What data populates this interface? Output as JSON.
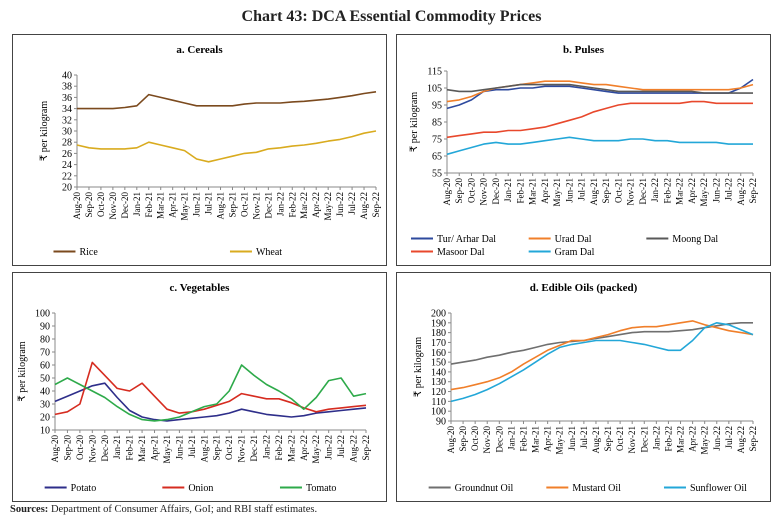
{
  "title": "Chart 43: DCA Essential Commodity Prices",
  "sources_label": "Sources:",
  "sources_text": "Department of Consumer Affairs, GoI; and RBI staff estimates.",
  "months": [
    "Aug-20",
    "Sep-20",
    "Oct-20",
    "Nov-20",
    "Dec-20",
    "Jan-21",
    "Feb-21",
    "Mar-21",
    "Apr-21",
    "May-21",
    "Jun-21",
    "Jul-21",
    "Aug-21",
    "Sep-21",
    "Oct-21",
    "Nov-21",
    "Dec-21",
    "Jan-22",
    "Feb-22",
    "Mar-22",
    "Apr-22",
    "May-22",
    "Jun-22",
    "Jul-22",
    "Aug-22",
    "Sep-22"
  ],
  "chart_data": [
    {
      "id": "cereals",
      "type": "line",
      "title": "a. Cereals",
      "ylabel": "₹ per kilogram",
      "ylim": [
        20,
        40
      ],
      "yticks": [
        20,
        22,
        24,
        26,
        28,
        30,
        32,
        34,
        36,
        38,
        40
      ],
      "x": [
        "Aug-20",
        "Sep-20",
        "Oct-20",
        "Nov-20",
        "Dec-20",
        "Jan-21",
        "Feb-21",
        "Mar-21",
        "Apr-21",
        "May-21",
        "Jun-21",
        "Jul-21",
        "Aug-21",
        "Sep-21",
        "Oct-21",
        "Nov-21",
        "Dec-21",
        "Jan-22",
        "Feb-22",
        "Mar-22",
        "Apr-22",
        "May-22",
        "Jun-22",
        "Jul-22",
        "Aug-22",
        "Sep-22"
      ],
      "legend_position": "bottom",
      "series": [
        {
          "name": "Rice",
          "color": "#7b4a1e",
          "values": [
            34,
            34,
            34,
            34,
            34.2,
            34.5,
            36.5,
            36,
            35.5,
            35,
            34.5,
            34.5,
            34.5,
            34.5,
            34.8,
            35,
            35,
            35,
            35.2,
            35.3,
            35.5,
            35.7,
            36,
            36.3,
            36.7,
            37
          ]
        },
        {
          "name": "Wheat",
          "color": "#d9ab1f",
          "values": [
            27.5,
            27,
            26.8,
            26.8,
            26.8,
            27,
            28,
            27.5,
            27,
            26.5,
            25,
            24.5,
            25,
            25.5,
            26,
            26.2,
            26.8,
            27,
            27.3,
            27.5,
            27.8,
            28.2,
            28.5,
            29,
            29.6,
            30
          ]
        }
      ]
    },
    {
      "id": "pulses",
      "type": "line",
      "title": "b. Pulses",
      "ylabel": "₹ per kilogram",
      "ylim": [
        55,
        115
      ],
      "yticks": [
        55,
        65,
        75,
        85,
        95,
        105,
        115
      ],
      "x": [
        "Aug-20",
        "Sep-20",
        "Oct-20",
        "Nov-20",
        "Dec-20",
        "Jan-21",
        "Feb-21",
        "Mar-21",
        "Apr-21",
        "May-21",
        "Jun-21",
        "Jul-21",
        "Aug-21",
        "Sep-21",
        "Oct-21",
        "Nov-21",
        "Dec-21",
        "Jan-22",
        "Feb-22",
        "Mar-22",
        "Apr-22",
        "May-22",
        "Jun-22",
        "Jul-22",
        "Aug-22",
        "Sep-22"
      ],
      "legend_position": "bottom",
      "series": [
        {
          "name": "Tur/ Arhar Dal",
          "color": "#2e4a9e",
          "values": [
            93,
            95,
            98,
            103,
            104,
            104,
            105,
            105,
            106,
            106,
            106,
            105,
            104,
            103,
            102,
            102,
            102,
            102,
            102,
            102,
            102,
            102,
            102,
            102,
            105,
            110
          ]
        },
        {
          "name": "Urad Dal",
          "color": "#f07f2a",
          "values": [
            97,
            98,
            100,
            103,
            105,
            106,
            107,
            108,
            109,
            109,
            109,
            108,
            107,
            107,
            106,
            105,
            104,
            104,
            104,
            104,
            104,
            104,
            104,
            104,
            105,
            107
          ]
        },
        {
          "name": "Moong Dal",
          "color": "#595959",
          "values": [
            104,
            103,
            103,
            104,
            105,
            106,
            107,
            107,
            107,
            107,
            107,
            106,
            105,
            104,
            103,
            103,
            103,
            103,
            103,
            103,
            103,
            102,
            102,
            102,
            102,
            102
          ]
        },
        {
          "name": "Masoor Dal",
          "color": "#e8482c",
          "values": [
            76,
            77,
            78,
            79,
            79,
            80,
            80,
            81,
            82,
            84,
            86,
            88,
            91,
            93,
            95,
            96,
            96,
            96,
            96,
            96,
            97,
            97,
            96,
            96,
            96,
            96
          ]
        },
        {
          "name": "Gram Dal",
          "color": "#23a7d8",
          "values": [
            66,
            68,
            70,
            72,
            73,
            72,
            72,
            73,
            74,
            75,
            76,
            75,
            74,
            74,
            74,
            75,
            75,
            74,
            74,
            73,
            73,
            73,
            73,
            72,
            72,
            72
          ]
        }
      ]
    },
    {
      "id": "vegetables",
      "type": "line",
      "title": "c. Vegetables",
      "ylabel": "₹ per kilogram",
      "ylim": [
        10,
        100
      ],
      "yticks": [
        10,
        20,
        30,
        40,
        50,
        60,
        70,
        80,
        90,
        100
      ],
      "x": [
        "Aug-20",
        "Sep-20",
        "Oct-20",
        "Nov-20",
        "Dec-20",
        "Jan-21",
        "Feb-21",
        "Mar-21",
        "Apr-21",
        "May-21",
        "Jun-21",
        "Jul-21",
        "Aug-21",
        "Sep-21",
        "Oct-21",
        "Nov-21",
        "Dec-21",
        "Jan-22",
        "Feb-22",
        "Mar-22",
        "Apr-22",
        "May-22",
        "Jun-22",
        "Jul-22",
        "Aug-22",
        "Sep-22"
      ],
      "legend_position": "bottom",
      "series": [
        {
          "name": "Potato",
          "color": "#2e2e8a",
          "values": [
            32,
            36,
            40,
            44,
            46,
            35,
            25,
            20,
            18,
            17,
            18,
            19,
            20,
            21,
            23,
            26,
            24,
            22,
            21,
            20,
            21,
            23,
            24,
            25,
            26,
            27
          ]
        },
        {
          "name": "Onion",
          "color": "#d62c20",
          "values": [
            22,
            24,
            30,
            62,
            52,
            42,
            40,
            46,
            36,
            26,
            23,
            24,
            26,
            29,
            32,
            38,
            36,
            34,
            34,
            31,
            27,
            24,
            26,
            27,
            28,
            29
          ]
        },
        {
          "name": "Tomato",
          "color": "#2eaa4a",
          "values": [
            45,
            50,
            45,
            40,
            35,
            28,
            22,
            18,
            17,
            18,
            20,
            24,
            28,
            30,
            40,
            60,
            52,
            45,
            40,
            34,
            26,
            35,
            48,
            50,
            36,
            38
          ]
        }
      ]
    },
    {
      "id": "edible_oils",
      "type": "line",
      "title": "d. Edible Oils (packed)",
      "ylabel": "₹ per kilogram",
      "ylim": [
        90,
        200
      ],
      "yticks": [
        90,
        100,
        110,
        120,
        130,
        140,
        150,
        160,
        170,
        180,
        190,
        200
      ],
      "x": [
        "Aug-20",
        "Sep-20",
        "Oct-20",
        "Nov-20",
        "Dec-20",
        "Jan-21",
        "Feb-21",
        "Mar-21",
        "Apr-21",
        "May-21",
        "Jun-21",
        "Jul-21",
        "Aug-21",
        "Sep-21",
        "Oct-21",
        "Nov-21",
        "Dec-21",
        "Jan-22",
        "Feb-22",
        "Mar-22",
        "Apr-22",
        "May-22",
        "Jun-22",
        "Jul-22",
        "Aug-22",
        "Sep-22"
      ],
      "legend_position": "bottom",
      "series": [
        {
          "name": "Groundnut Oil",
          "color": "#6f6f6f",
          "values": [
            148,
            150,
            152,
            155,
            157,
            160,
            162,
            165,
            168,
            170,
            171,
            172,
            174,
            176,
            178,
            180,
            181,
            181,
            181,
            182,
            183,
            185,
            187,
            189,
            190,
            190
          ]
        },
        {
          "name": "Mustard Oil",
          "color": "#f07f2a",
          "values": [
            122,
            124,
            127,
            130,
            134,
            140,
            148,
            155,
            162,
            167,
            172,
            172,
            175,
            178,
            182,
            185,
            186,
            186,
            188,
            190,
            192,
            188,
            185,
            182,
            180,
            178
          ]
        },
        {
          "name": "Sunflower Oil",
          "color": "#23a7d8",
          "values": [
            110,
            113,
            117,
            122,
            128,
            135,
            142,
            150,
            158,
            165,
            168,
            170,
            172,
            172,
            172,
            170,
            168,
            165,
            162,
            162,
            172,
            185,
            190,
            188,
            183,
            178
          ]
        }
      ]
    }
  ]
}
